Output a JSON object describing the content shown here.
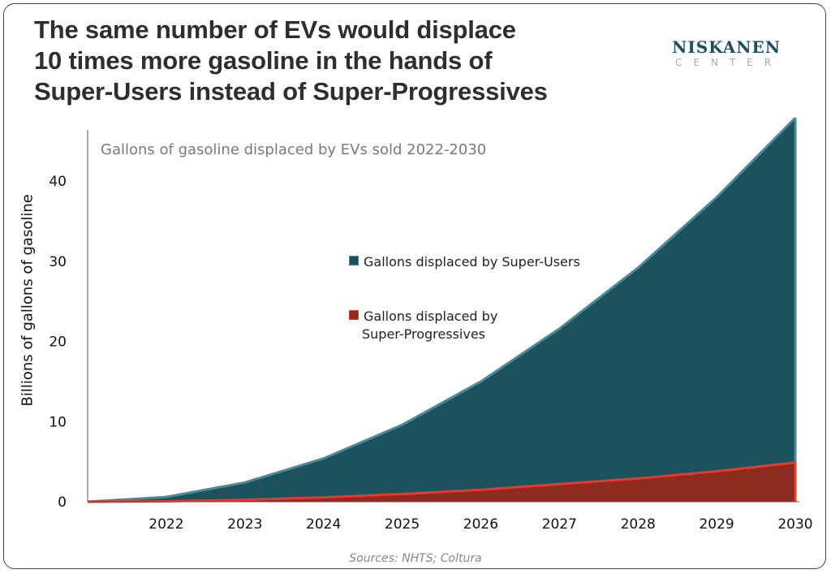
{
  "title_lines": [
    "The same number of EVs would displace",
    "10 times more gasoline in the hands of",
    "Super-Users instead of Super-Progressives"
  ],
  "logo": {
    "line1": "NISKANEN",
    "line2": "CENTER"
  },
  "source": "Sources: NHTS; Coltura",
  "chart_data": {
    "type": "area",
    "title": "",
    "subtitle": "Gallons of gasoline displaced by EVs sold 2022-2030",
    "xlabel": "",
    "ylabel": "Billions of gallons of gasoline",
    "x": [
      2021,
      2022,
      2023,
      2024,
      2025,
      2026,
      2027,
      2028,
      2029,
      2030
    ],
    "x_tick_labels": [
      "2022",
      "2023",
      "2024",
      "2025",
      "2026",
      "2027",
      "2028",
      "2029",
      "2030"
    ],
    "y_ticks": [
      0,
      10,
      20,
      30,
      40
    ],
    "ylim": [
      0,
      48
    ],
    "grid": false,
    "legend_placement": "center",
    "series": [
      {
        "name": "Gallons displaced by Super-Users",
        "color": "#1c525e",
        "line_color": "#4a8a98",
        "values": [
          0,
          0.6,
          2.4,
          5.4,
          9.6,
          15.0,
          21.6,
          29.2,
          38.0,
          47.9
        ]
      },
      {
        "name": "Gallons displaced by Super-Progressives",
        "color": "#8b2c1f",
        "line_color": "#e8392c",
        "values": [
          0,
          0.06,
          0.24,
          0.54,
          0.96,
          1.5,
          2.2,
          2.9,
          3.8,
          4.9
        ]
      }
    ]
  }
}
